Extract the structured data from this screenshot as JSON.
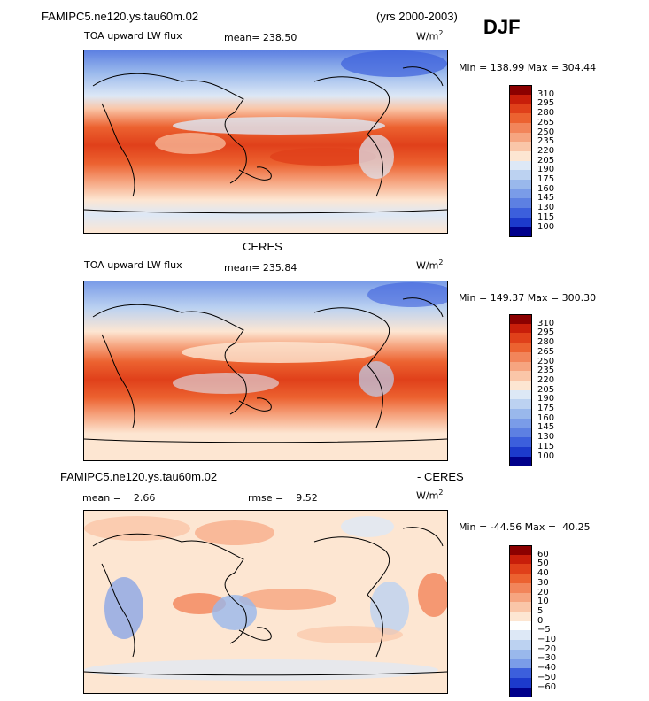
{
  "header": {
    "case_name": "FAMIPC5.ne120.ys.tau60m.02",
    "years": "(yrs 2000-2003)",
    "season": "DJF"
  },
  "panels": [
    {
      "id": "model",
      "variable": "TOA upward LW flux",
      "mean_text": "mean= 238.50",
      "units_base": "W/m",
      "units_exp": "2",
      "minmax_text": "Min = 138.99 Max = 304.44",
      "colorbar": {
        "labels": [
          "310",
          "295",
          "280",
          "265",
          "250",
          "235",
          "220",
          "205",
          "190",
          "175",
          "160",
          "145",
          "130",
          "115",
          "100"
        ],
        "colors": [
          "#8b0000",
          "#c81e0a",
          "#e0401a",
          "#ec6230",
          "#f2855a",
          "#f6a580",
          "#fac6a8",
          "#fde6d2",
          "#dde8f6",
          "#bcd2f1",
          "#99b8ec",
          "#7a9ce8",
          "#5d80e2",
          "#3c5fdc",
          "#1c3acc",
          "#00008b"
        ]
      }
    },
    {
      "id": "obs",
      "title": "CERES",
      "variable": "TOA upward LW flux",
      "mean_text": "mean= 235.84",
      "units_base": "W/m",
      "units_exp": "2",
      "minmax_text": "Min = 149.37 Max = 300.30",
      "colorbar": {
        "labels": [
          "310",
          "295",
          "280",
          "265",
          "250",
          "235",
          "220",
          "205",
          "190",
          "175",
          "160",
          "145",
          "130",
          "115",
          "100"
        ],
        "colors": [
          "#8b0000",
          "#c81e0a",
          "#e0401a",
          "#ec6230",
          "#f2855a",
          "#f6a580",
          "#fac6a8",
          "#fde6d2",
          "#dde8f6",
          "#bcd2f1",
          "#99b8ec",
          "#7a9ce8",
          "#5d80e2",
          "#3c5fdc",
          "#1c3acc",
          "#00008b"
        ]
      }
    },
    {
      "id": "diff",
      "title_left": "FAMIPC5.ne120.ys.tau60m.02",
      "title_right": "- CERES",
      "mean_text": "mean =    2.66",
      "rmse_text": "rmse =    9.52",
      "units_base": "W/m",
      "units_exp": "2",
      "minmax_text": "Min = -44.56 Max =  40.25",
      "colorbar": {
        "labels": [
          "60",
          "50",
          "40",
          "30",
          "20",
          "10",
          "5",
          "0",
          "−5",
          "−10",
          "−20",
          "−30",
          "−40",
          "−50",
          "−60"
        ],
        "colors": [
          "#8b0000",
          "#c81e0a",
          "#e0401a",
          "#ec6230",
          "#f2855a",
          "#f6a580",
          "#fac6a8",
          "#fde6d2",
          "#ffffff",
          "#dde8f6",
          "#bcd2f1",
          "#99b8ec",
          "#7a9ce8",
          "#3c5fdc",
          "#1c3acc",
          "#00008b"
        ]
      }
    }
  ]
}
